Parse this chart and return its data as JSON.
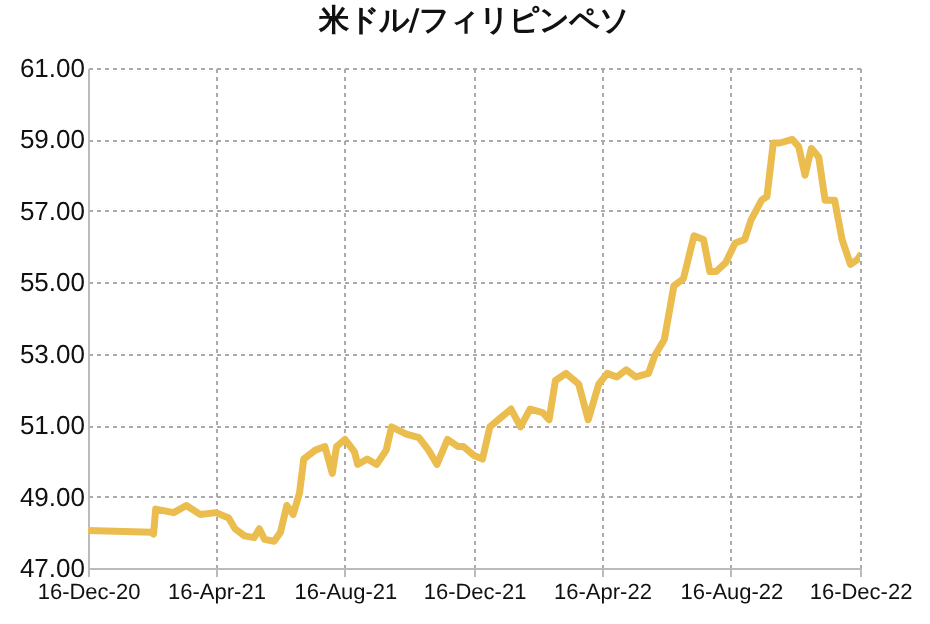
{
  "chart_data": {
    "type": "line",
    "title": "米ドル/フィリピンペソ",
    "x": [
      "2020-12-16",
      "2021-02-14",
      "2021-02-16",
      "2021-02-18",
      "2021-03-07",
      "2021-03-19",
      "2021-04-01",
      "2021-04-16",
      "2021-04-28",
      "2021-05-04",
      "2021-05-13",
      "2021-05-22",
      "2021-05-27",
      "2021-06-01",
      "2021-06-10",
      "2021-06-16",
      "2021-06-22",
      "2021-06-28",
      "2021-07-04",
      "2021-07-08",
      "2021-07-19",
      "2021-07-28",
      "2021-08-04",
      "2021-08-08",
      "2021-08-16",
      "2021-08-25",
      "2021-08-28",
      "2021-09-06",
      "2021-09-15",
      "2021-09-24",
      "2021-09-29",
      "2021-10-13",
      "2021-10-25",
      "2021-11-03",
      "2021-11-11",
      "2021-11-21",
      "2021-12-01",
      "2021-12-06",
      "2021-12-16",
      "2021-12-24",
      "2021-12-31",
      "2022-01-08",
      "2022-01-20",
      "2022-01-29",
      "2022-02-07",
      "2022-02-19",
      "2022-02-25",
      "2022-03-03",
      "2022-03-13",
      "2022-03-25",
      "2022-04-03",
      "2022-04-13",
      "2022-04-21",
      "2022-04-30",
      "2022-05-09",
      "2022-05-18",
      "2022-05-30",
      "2022-06-05",
      "2022-06-14",
      "2022-06-23",
      "2022-07-02",
      "2022-07-12",
      "2022-07-21",
      "2022-07-27",
      "2022-08-02",
      "2022-08-11",
      "2022-08-20",
      "2022-08-29",
      "2022-09-04",
      "2022-09-14",
      "2022-09-19",
      "2022-09-25",
      "2022-10-01",
      "2022-10-13",
      "2022-10-19",
      "2022-10-25",
      "2022-10-31",
      "2022-11-07",
      "2022-11-13",
      "2022-11-22",
      "2022-11-29",
      "2022-12-07",
      "2022-12-14",
      "2022-12-16"
    ],
    "series": [
      {
        "color": "#ebbd4f",
        "values": [
          48.05,
          48.0,
          47.95,
          48.65,
          48.55,
          48.75,
          48.5,
          48.55,
          48.4,
          48.1,
          47.9,
          47.85,
          48.1,
          47.8,
          47.75,
          48.0,
          48.75,
          48.5,
          49.1,
          50.05,
          50.3,
          50.4,
          49.65,
          50.4,
          50.6,
          50.25,
          49.9,
          50.05,
          49.9,
          50.3,
          50.95,
          50.75,
          50.65,
          50.3,
          49.9,
          50.6,
          50.4,
          50.4,
          50.15,
          50.05,
          50.95,
          51.15,
          51.45,
          50.95,
          51.45,
          51.35,
          51.15,
          52.25,
          52.45,
          52.15,
          51.15,
          52.15,
          52.45,
          52.35,
          52.55,
          52.35,
          52.45,
          52.95,
          53.4,
          54.9,
          55.1,
          56.3,
          56.2,
          55.3,
          55.3,
          55.55,
          56.1,
          56.2,
          56.75,
          57.3,
          57.4,
          58.9,
          58.9,
          59.0,
          58.8,
          58.0,
          58.75,
          58.5,
          57.3,
          57.3,
          56.2,
          55.5,
          55.65,
          55.75
        ]
      }
    ],
    "xlim": [
      "2020-12-16",
      "2022-12-16"
    ],
    "xticks": [
      {
        "value": "2020-12-16",
        "label": "16-Dec-20"
      },
      {
        "value": "2021-04-16",
        "label": "16-Apr-21"
      },
      {
        "value": "2021-08-16",
        "label": "16-Aug-21"
      },
      {
        "value": "2021-12-16",
        "label": "16-Dec-21"
      },
      {
        "value": "2022-04-16",
        "label": "16-Apr-22"
      },
      {
        "value": "2022-08-16",
        "label": "16-Aug-22"
      },
      {
        "value": "2022-12-16",
        "label": "16-Dec-22"
      }
    ],
    "ylim": [
      47,
      61
    ],
    "yticks": [
      {
        "value": 47,
        "label": "47.00"
      },
      {
        "value": 49,
        "label": "49.00"
      },
      {
        "value": 51,
        "label": "51.00"
      },
      {
        "value": 53,
        "label": "53.00"
      },
      {
        "value": 55,
        "label": "55.00"
      },
      {
        "value": 57,
        "label": "57.00"
      },
      {
        "value": 59,
        "label": "59.00"
      },
      {
        "value": 61,
        "label": "61.00"
      }
    ],
    "grid": true,
    "legend": false,
    "marker": "none",
    "line_style": "solid"
  }
}
